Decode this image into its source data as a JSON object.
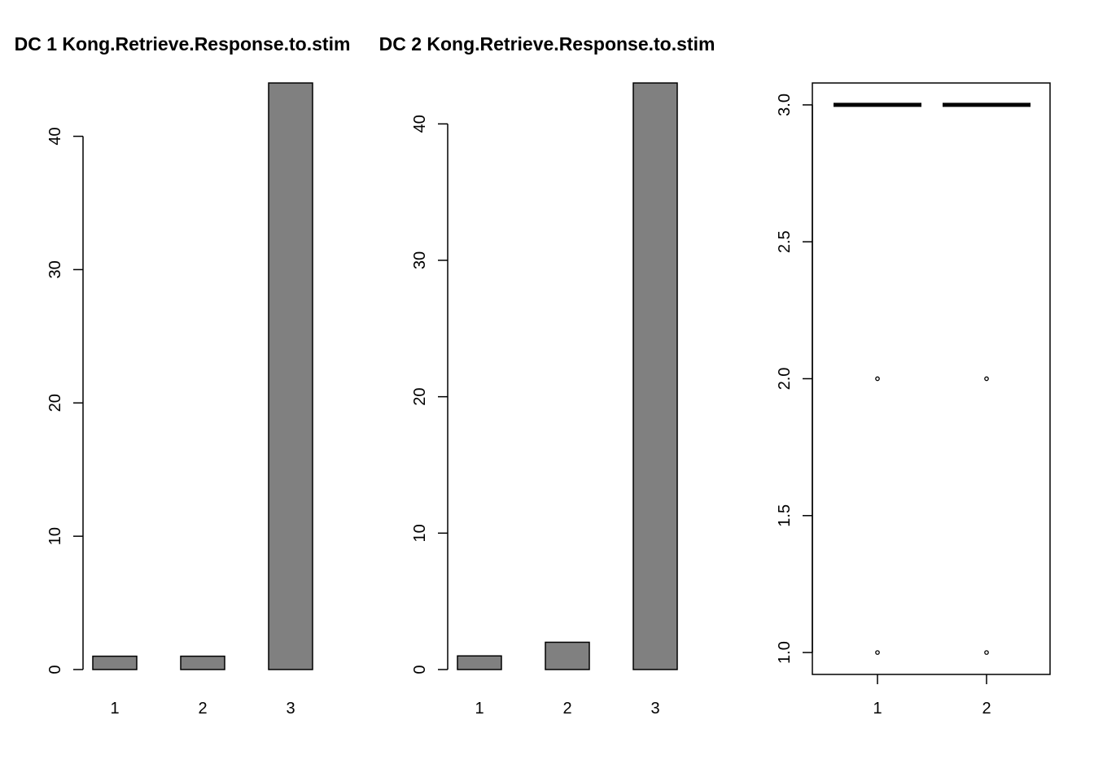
{
  "background": "#ffffff",
  "bar_fill": "#808080",
  "stroke_color": "#000000",
  "chart_data": [
    {
      "type": "bar",
      "title": "DC 1 Kong.Retrieve.Response.to.stim",
      "categories": [
        "1",
        "2",
        "3"
      ],
      "values": [
        1,
        1,
        44
      ],
      "ylim": [
        0,
        44
      ],
      "yticks": [
        0,
        10,
        20,
        30,
        40
      ],
      "xlabel": "",
      "ylabel": "",
      "grid": false
    },
    {
      "type": "bar",
      "title": "DC 2 Kong.Retrieve.Response.to.stim",
      "categories": [
        "1",
        "2",
        "3"
      ],
      "values": [
        1,
        2,
        43
      ],
      "ylim": [
        0,
        43
      ],
      "yticks": [
        0,
        10,
        20,
        30,
        40
      ],
      "xlabel": "",
      "ylabel": "",
      "grid": false
    },
    {
      "type": "box",
      "title": "",
      "categories": [
        "1",
        "2"
      ],
      "series": [
        {
          "median": 3,
          "q1": 3,
          "q3": 3,
          "whisker_low": 3,
          "whisker_high": 3,
          "outliers": [
            1,
            2
          ]
        },
        {
          "median": 3,
          "q1": 3,
          "q3": 3,
          "whisker_low": 3,
          "whisker_high": 3,
          "outliers": [
            1,
            2
          ]
        }
      ],
      "ylim": [
        0.92,
        3.08
      ],
      "yticks": [
        1.0,
        1.5,
        2.0,
        2.5,
        3.0
      ],
      "ytick_labels": [
        "1.0",
        "1.5",
        "2.0",
        "2.5",
        "3.0"
      ],
      "xlabel": "",
      "ylabel": "",
      "grid": false,
      "box": true
    }
  ]
}
